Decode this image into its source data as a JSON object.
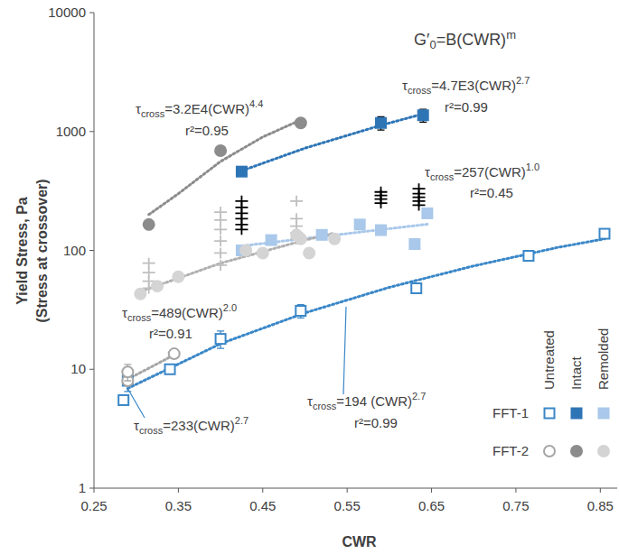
{
  "chart_data": {
    "type": "scatter",
    "formula": {
      "symbol": "G′",
      "sub": "0",
      "body": "=B(CWR)",
      "sup": "m"
    },
    "xlabel": "CWR",
    "ylabel": [
      "Yield Stress, Pa",
      "(Stress at crossover)"
    ],
    "log": "y",
    "grid": false,
    "legend": "lower right",
    "xlim": [
      0.25,
      0.87
    ],
    "xticks": [
      0.25,
      0.35,
      0.45,
      0.55,
      0.65,
      0.75,
      0.85
    ],
    "ylim": [
      1,
      10000
    ],
    "yticks": [
      1,
      10,
      100,
      1000,
      10000
    ],
    "legend_groups": [
      "FFT-1",
      "FFT-2"
    ],
    "legend_treatments": [
      "Untreated",
      "Intact",
      "Remolded"
    ],
    "series": [
      {
        "group": "FFT-1",
        "treatment": "Untreated",
        "marker": "square-open",
        "color": "#3a87c8",
        "x": [
          0.285,
          0.29,
          0.34,
          0.4,
          0.495,
          0.632,
          0.765,
          0.855
        ],
        "values": [
          5.5,
          8,
          10,
          18,
          31,
          48,
          90,
          138
        ],
        "errors": [
          null,
          1.5,
          null,
          3,
          4,
          null,
          null,
          null
        ]
      },
      {
        "group": "FFT-1",
        "treatment": "Intact",
        "marker": "square",
        "color": "#2e75b6",
        "x": [
          0.425,
          0.59,
          0.64
        ],
        "values": [
          460,
          1180,
          1370
        ],
        "errors": [
          null,
          150,
          170
        ]
      },
      {
        "group": "FFT-1",
        "treatment": "Remolded",
        "marker": "square",
        "color": "#a9c8ea",
        "x": [
          0.425,
          0.46,
          0.52,
          0.565,
          0.59,
          0.63,
          0.645
        ],
        "values": [
          100,
          122,
          135,
          165,
          148,
          113,
          205
        ]
      },
      {
        "group": "FFT-2",
        "treatment": "Untreated",
        "marker": "circle-open",
        "color": "#a6a6a6",
        "x": [
          0.29,
          0.29,
          0.345
        ],
        "values": [
          8,
          9.5,
          13.5
        ],
        "errors": [
          null,
          1.5,
          null
        ]
      },
      {
        "group": "FFT-2",
        "treatment": "Intact",
        "marker": "circle",
        "color": "#8c8c8c",
        "x": [
          0.315,
          0.4,
          0.495
        ],
        "values": [
          165,
          690,
          1180
        ]
      },
      {
        "group": "FFT-2",
        "treatment": "Remolded",
        "marker": "circle",
        "color": "#d4d4d4",
        "x": [
          0.305,
          0.325,
          0.35,
          0.43,
          0.45,
          0.49,
          0.495,
          0.505,
          0.535
        ],
        "values": [
          43,
          50,
          60,
          100,
          95,
          135,
          125,
          95,
          125
        ]
      },
      {
        "marker": "plus",
        "color": "#000000",
        "x": [
          0.425,
          0.425,
          0.425,
          0.425,
          0.425,
          0.425,
          0.59,
          0.59,
          0.59,
          0.59,
          0.635,
          0.635,
          0.635,
          0.635,
          0.635
        ],
        "values": [
          260,
          230,
          205,
          185,
          165,
          150,
          310,
          290,
          270,
          250,
          330,
          300,
          280,
          260,
          240
        ]
      },
      {
        "marker": "plus",
        "color": "#bfbfbf",
        "x": [
          0.315,
          0.315,
          0.315,
          0.315,
          0.4,
          0.4,
          0.4,
          0.4,
          0.4,
          0.4,
          0.49,
          0.49,
          0.49,
          0.49,
          0.49
        ],
        "values": [
          78,
          65,
          55,
          48,
          210,
          180,
          150,
          120,
          95,
          75,
          260,
          185,
          160,
          140,
          125
        ]
      },
      {
        "type": "line",
        "line_style": "dotted",
        "color": "#3a87c8",
        "x": [
          0.29,
          0.4,
          0.5,
          0.6,
          0.7,
          0.8,
          0.855
        ],
        "values": [
          6.9,
          16.4,
          29.8,
          48.9,
          74,
          106,
          125
        ]
      },
      {
        "type": "line",
        "line_style": "dotted",
        "color": "#2e75b6",
        "x": [
          0.425,
          0.5,
          0.59,
          0.64
        ],
        "values": [
          467,
          724,
          1128,
          1406
        ]
      },
      {
        "type": "line",
        "line_style": "dotted",
        "color": "#a9c8ea",
        "x": [
          0.425,
          0.645
        ],
        "values": [
          109,
          166
        ]
      },
      {
        "type": "line",
        "line_style": "dotted",
        "color": "#a6a6a6",
        "x": [
          0.285,
          0.345
        ],
        "values": [
          7.9,
          13.2
        ]
      },
      {
        "type": "line",
        "line_style": "dotted",
        "color": "#8c8c8c",
        "x": [
          0.315,
          0.35,
          0.4,
          0.45,
          0.495
        ],
        "values": [
          200,
          300,
          560,
          900,
          1250
        ]
      },
      {
        "type": "line",
        "line_style": "dotted",
        "color": "#b0b0b0",
        "x": [
          0.305,
          0.4,
          0.5,
          0.535
        ],
        "values": [
          45,
          78,
          122,
          140
        ]
      }
    ],
    "annotations": [
      {
        "symbol": "τ",
        "sub": "cross",
        "body": "=3.2E4(CWR)",
        "sup": "4.4",
        "r2": "r²=0.95"
      },
      {
        "symbol": "τ",
        "sub": "cross",
        "body": "=4.7E3(CWR)",
        "sup": "2.7",
        "r2": "r²=0.99"
      },
      {
        "symbol": "τ",
        "sub": "cross",
        "body": "=257(CWR)",
        "sup": "1.0",
        "r2": "r²=0.45"
      },
      {
        "symbol": "τ",
        "sub": "cross",
        "body": "=489(CWR)",
        "sup": "2.0",
        "r2": "r²=0.91"
      },
      {
        "symbol": "τ",
        "sub": "cross",
        "body": "=194 (CWR)",
        "sup": "2.7",
        "r2": "r²=0.99"
      },
      {
        "symbol": "τ",
        "sub": "cross",
        "body": "=233(CWR)",
        "sup": "2.7"
      }
    ]
  }
}
